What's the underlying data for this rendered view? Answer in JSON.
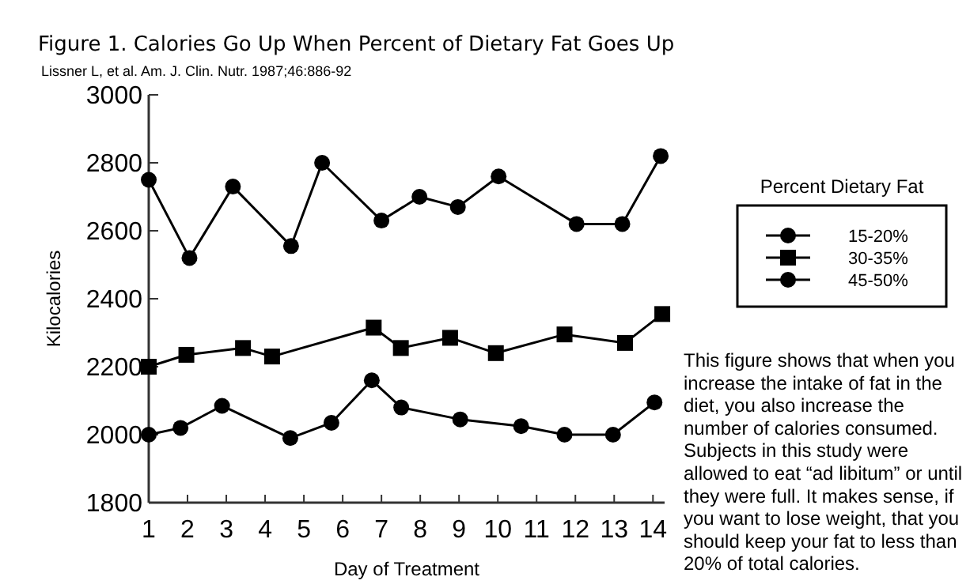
{
  "chart_data": {
    "type": "line",
    "title": "Figure 1. Calories Go Up When Percent of Dietary Fat Goes Up",
    "subtitle": "Lissner L, et al. Am. J. Clin. Nutr. 1987;46:886-92",
    "xlabel": "Day of Treatment",
    "ylabel": "Kilocalories",
    "legend_title": "Percent  Dietary Fat",
    "legend": "right",
    "annotations": [
      "This figure shows that when you increase the intake of fat in the diet, you also increase the number of calories consumed. Subjects in this study were allowed to eat “ad libitum” or until they were full. It makes sense, if you want to lose weight, that you should keep your fat to less than 20% of total calories."
    ],
    "xlim": [
      1,
      14.3
    ],
    "xticks": [
      1,
      2,
      3,
      4,
      5,
      6,
      7,
      8,
      9,
      10,
      11,
      12,
      13,
      14
    ],
    "ylim": [
      1800,
      3000
    ],
    "yticks": [
      1800,
      2000,
      2200,
      2400,
      2600,
      2800,
      3000
    ],
    "grid": false,
    "line_style": "solid",
    "series": [
      {
        "name": "15-20%",
        "color": "#000000",
        "marker": "circle",
        "x": [
          1,
          1.82,
          2.89,
          4.65,
          5.71,
          6.75,
          7.51,
          9.03,
          10.6,
          11.72,
          12.97,
          14.04
        ],
        "values": [
          2000,
          2020,
          2085,
          1990,
          2035,
          2160,
          2080,
          2045,
          2025,
          2000,
          2000,
          2095
        ]
      },
      {
        "name": "30-35%",
        "color": "#000000",
        "marker": "square",
        "x": [
          1,
          1.97,
          3.43,
          4.18,
          6.8,
          7.5,
          8.77,
          9.95,
          11.72,
          13.28,
          14.24
        ],
        "values": [
          2200,
          2235,
          2255,
          2230,
          2315,
          2255,
          2285,
          2240,
          2295,
          2270,
          2355
        ]
      },
      {
        "name": "45-50%",
        "color": "#000000",
        "marker": "circle",
        "x": [
          1,
          2.05,
          3.17,
          4.67,
          5.47,
          7.0,
          7.98,
          8.97,
          10.02,
          12.03,
          13.21,
          14.2
        ],
        "values": [
          2750,
          2520,
          2730,
          2555,
          2800,
          2630,
          2700,
          2670,
          2760,
          2620,
          2620,
          2820
        ]
      }
    ]
  }
}
